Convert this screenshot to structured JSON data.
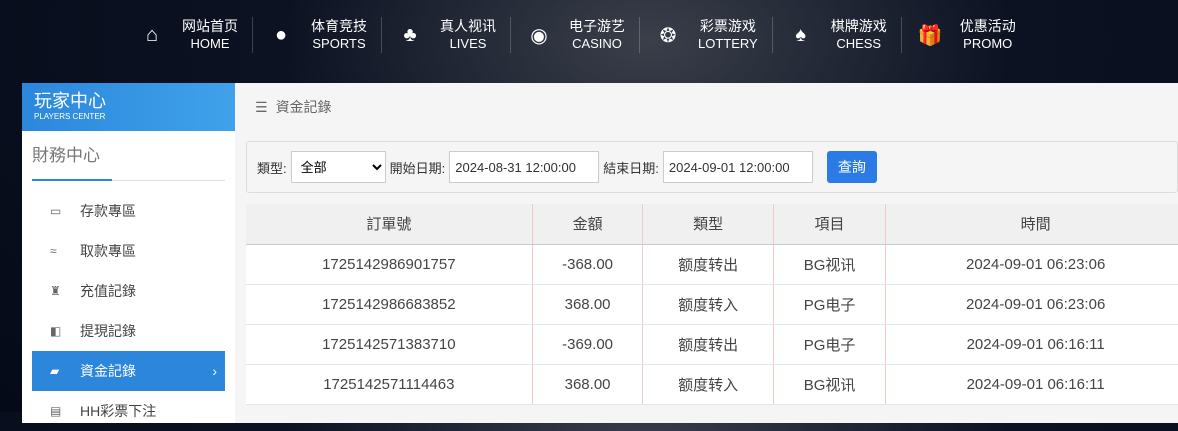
{
  "nav": [
    {
      "zh": "网站首页",
      "en": "HOME",
      "icon": "home-icon",
      "glyph": "⌂"
    },
    {
      "zh": "体育竞技",
      "en": "SPORTS",
      "icon": "ball-icon",
      "glyph": "●"
    },
    {
      "zh": "真人视讯",
      "en": "LIVES",
      "icon": "cards-icon",
      "glyph": "♣"
    },
    {
      "zh": "电子游艺",
      "en": "CASINO",
      "icon": "roulette-icon",
      "glyph": "◉"
    },
    {
      "zh": "彩票游戏",
      "en": "LOTTERY",
      "icon": "lottery-balls-icon",
      "glyph": "❂"
    },
    {
      "zh": "棋牌游戏",
      "en": "CHESS",
      "icon": "spade-icon",
      "glyph": "♠"
    },
    {
      "zh": "优惠活动",
      "en": "PROMO",
      "icon": "gift-icon",
      "glyph": "🎁"
    }
  ],
  "sidebar": {
    "title_zh": "玩家中心",
    "title_en": "PLAYERS CENTER",
    "section": "財務中心",
    "items": [
      {
        "label": "存款專區",
        "glyph": "▭"
      },
      {
        "label": "取款專區",
        "glyph": "≈"
      },
      {
        "label": "充值記錄",
        "glyph": "♜"
      },
      {
        "label": "提現記錄",
        "glyph": "◧"
      },
      {
        "label": "資金記錄",
        "glyph": "▰",
        "arrow": "›"
      },
      {
        "label": "HH彩票下注",
        "glyph": "▤"
      }
    ]
  },
  "breadcrumb": {
    "icon": "☰",
    "label": "資金記錄"
  },
  "filter": {
    "type_label": "類型:",
    "type_value": "全部",
    "start_label": "開始日期:",
    "start_value": "2024-08-31 12:00:00",
    "end_label": "結束日期:",
    "end_value": "2024-09-01 12:00:00",
    "search": "查詢"
  },
  "table": {
    "headers": [
      "訂單號",
      "金額",
      "類型",
      "項目",
      "時間"
    ],
    "rows": [
      [
        "1725142986901757",
        "-368.00",
        "额度转出",
        "BG视讯",
        "2024-09-01 06:23:06"
      ],
      [
        "1725142986683852",
        "368.00",
        "额度转入",
        "PG电子",
        "2024-09-01 06:23:06"
      ],
      [
        "1725142571383710",
        "-369.00",
        "额度转出",
        "PG电子",
        "2024-09-01 06:16:11"
      ],
      [
        "1725142571114463",
        "368.00",
        "额度转入",
        "BG视讯",
        "2024-09-01 06:16:11"
      ]
    ]
  }
}
